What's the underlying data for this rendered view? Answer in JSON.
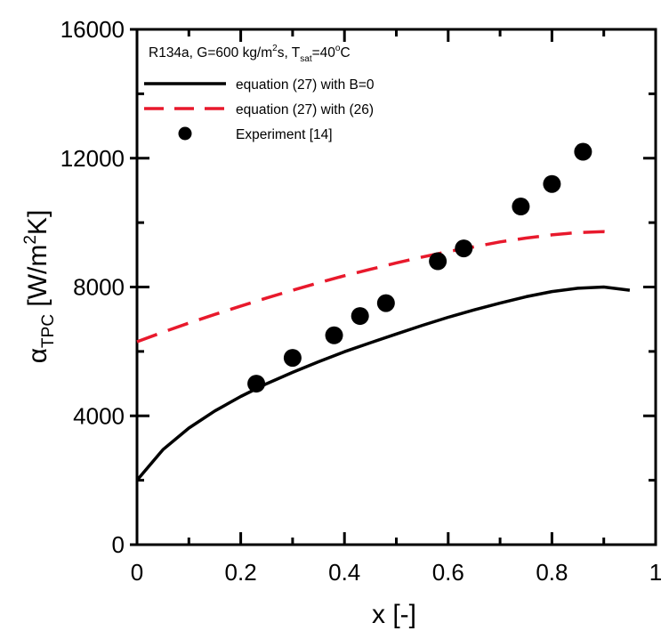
{
  "chart_data": {
    "type": "line",
    "annotation": {
      "prefix": "R134a, G=600 kg/m",
      "sup1": "2",
      "mid": "s, T",
      "sub": "sat",
      "mid2": "=40",
      "sup2": "o",
      "suffix": "C"
    },
    "xlabel": "x [-]",
    "ylabel": {
      "symbol": "α",
      "sub": "TPC",
      "unit_prefix": " [W/m",
      "unit_sup": "2",
      "unit_suffix": "K]"
    },
    "xlim": [
      0,
      1
    ],
    "ylim": [
      0,
      16000
    ],
    "x_ticks": [
      0,
      0.2,
      0.4,
      0.6,
      0.8,
      1
    ],
    "x_tick_labels": [
      "0",
      "0.2",
      "0.4",
      "0.6",
      "0.8",
      "1"
    ],
    "y_ticks": [
      0,
      4000,
      8000,
      12000,
      16000
    ],
    "y_tick_labels": [
      "0",
      "4000",
      "8000",
      "12000",
      "16000"
    ],
    "legend_position": "top-left",
    "series": [
      {
        "name": "equation (27) with B=0",
        "style": "solid",
        "color": "#000000",
        "x": [
          0,
          0.05,
          0.1,
          0.15,
          0.2,
          0.25,
          0.3,
          0.35,
          0.4,
          0.45,
          0.5,
          0.55,
          0.6,
          0.65,
          0.7,
          0.75,
          0.8,
          0.85,
          0.9,
          0.95
        ],
        "y": [
          2000,
          2950,
          3620,
          4150,
          4600,
          5000,
          5350,
          5680,
          5990,
          6270,
          6540,
          6810,
          7060,
          7290,
          7500,
          7700,
          7860,
          7960,
          8000,
          7900
        ]
      },
      {
        "name": "equation (27) with (26)",
        "style": "dashed",
        "color": "#e8192c",
        "x": [
          0,
          0.05,
          0.1,
          0.15,
          0.2,
          0.25,
          0.3,
          0.35,
          0.4,
          0.45,
          0.5,
          0.55,
          0.6,
          0.65,
          0.7,
          0.75,
          0.8,
          0.85,
          0.9,
          0.92
        ],
        "y": [
          6300,
          6600,
          6880,
          7150,
          7410,
          7660,
          7900,
          8130,
          8350,
          8550,
          8750,
          8930,
          9100,
          9250,
          9400,
          9520,
          9620,
          9690,
          9720,
          9690
        ]
      },
      {
        "name": "Experiment [14]",
        "style": "markers",
        "color": "#000000",
        "x": [
          0.23,
          0.3,
          0.38,
          0.43,
          0.48,
          0.58,
          0.63,
          0.74,
          0.8,
          0.86
        ],
        "y": [
          5000,
          5800,
          6500,
          7100,
          7500,
          8800,
          9200,
          10500,
          11200,
          12200
        ]
      }
    ]
  }
}
